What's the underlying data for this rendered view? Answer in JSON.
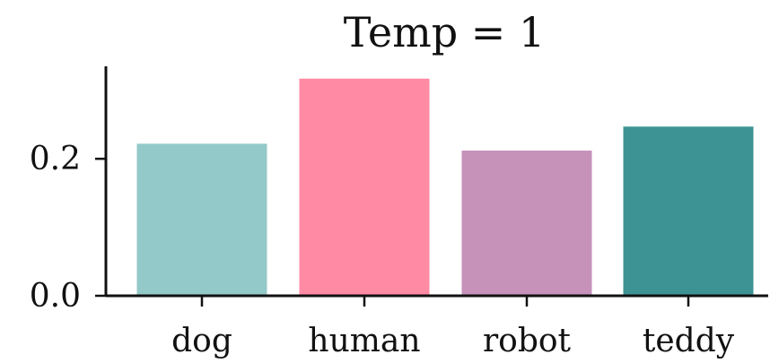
{
  "chart_data": {
    "type": "bar",
    "title": "Temp = 1",
    "xlabel": "",
    "ylabel": "",
    "categories": [
      "dog",
      "human",
      "robot",
      "teddy"
    ],
    "values": [
      0.222,
      0.317,
      0.212,
      0.247
    ],
    "colors": [
      "#93c9c8",
      "#ff8aa4",
      "#c792ba",
      "#3d9393"
    ],
    "ylim": [
      0,
      0.335
    ],
    "yticks": [
      0.0,
      0.2
    ],
    "ytick_labels": [
      "0.0",
      "0.2"
    ],
    "grid": false,
    "legend": "none"
  }
}
